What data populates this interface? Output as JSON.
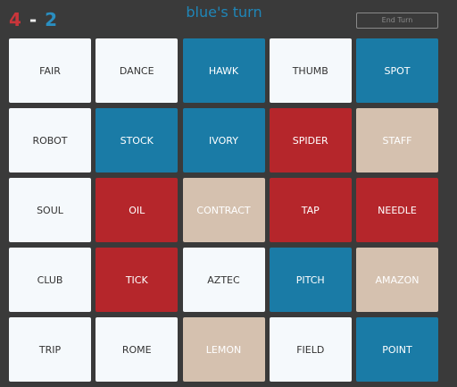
{
  "score": {
    "red": "4",
    "separator": "-",
    "blue": "2"
  },
  "turn": "blue's turn",
  "button": "End Turn",
  "team_colors": {
    "blue": "#1a7ba6",
    "red": "#b5262b",
    "neutral": "#d5c1af",
    "unknown": "#f5f9fc"
  },
  "cards": [
    {
      "word": "FAIR",
      "team": "unknown"
    },
    {
      "word": "DANCE",
      "team": "unknown"
    },
    {
      "word": "HAWK",
      "team": "blue"
    },
    {
      "word": "THUMB",
      "team": "unknown"
    },
    {
      "word": "SPOT",
      "team": "blue"
    },
    {
      "word": "ROBOT",
      "team": "unknown"
    },
    {
      "word": "STOCK",
      "team": "blue"
    },
    {
      "word": "IVORY",
      "team": "blue"
    },
    {
      "word": "SPIDER",
      "team": "red"
    },
    {
      "word": "STAFF",
      "team": "neutral"
    },
    {
      "word": "SOUL",
      "team": "unknown"
    },
    {
      "word": "OIL",
      "team": "red"
    },
    {
      "word": "CONTRACT",
      "team": "neutral"
    },
    {
      "word": "TAP",
      "team": "red"
    },
    {
      "word": "NEEDLE",
      "team": "red"
    },
    {
      "word": "CLUB",
      "team": "unknown"
    },
    {
      "word": "TICK",
      "team": "red"
    },
    {
      "word": "AZTEC",
      "team": "unknown"
    },
    {
      "word": "PITCH",
      "team": "blue"
    },
    {
      "word": "AMAZON",
      "team": "neutral"
    },
    {
      "word": "TRIP",
      "team": "unknown"
    },
    {
      "word": "ROME",
      "team": "unknown"
    },
    {
      "word": "LEMON",
      "team": "neutral"
    },
    {
      "word": "FIELD",
      "team": "unknown"
    },
    {
      "word": "POINT",
      "team": "blue"
    }
  ]
}
